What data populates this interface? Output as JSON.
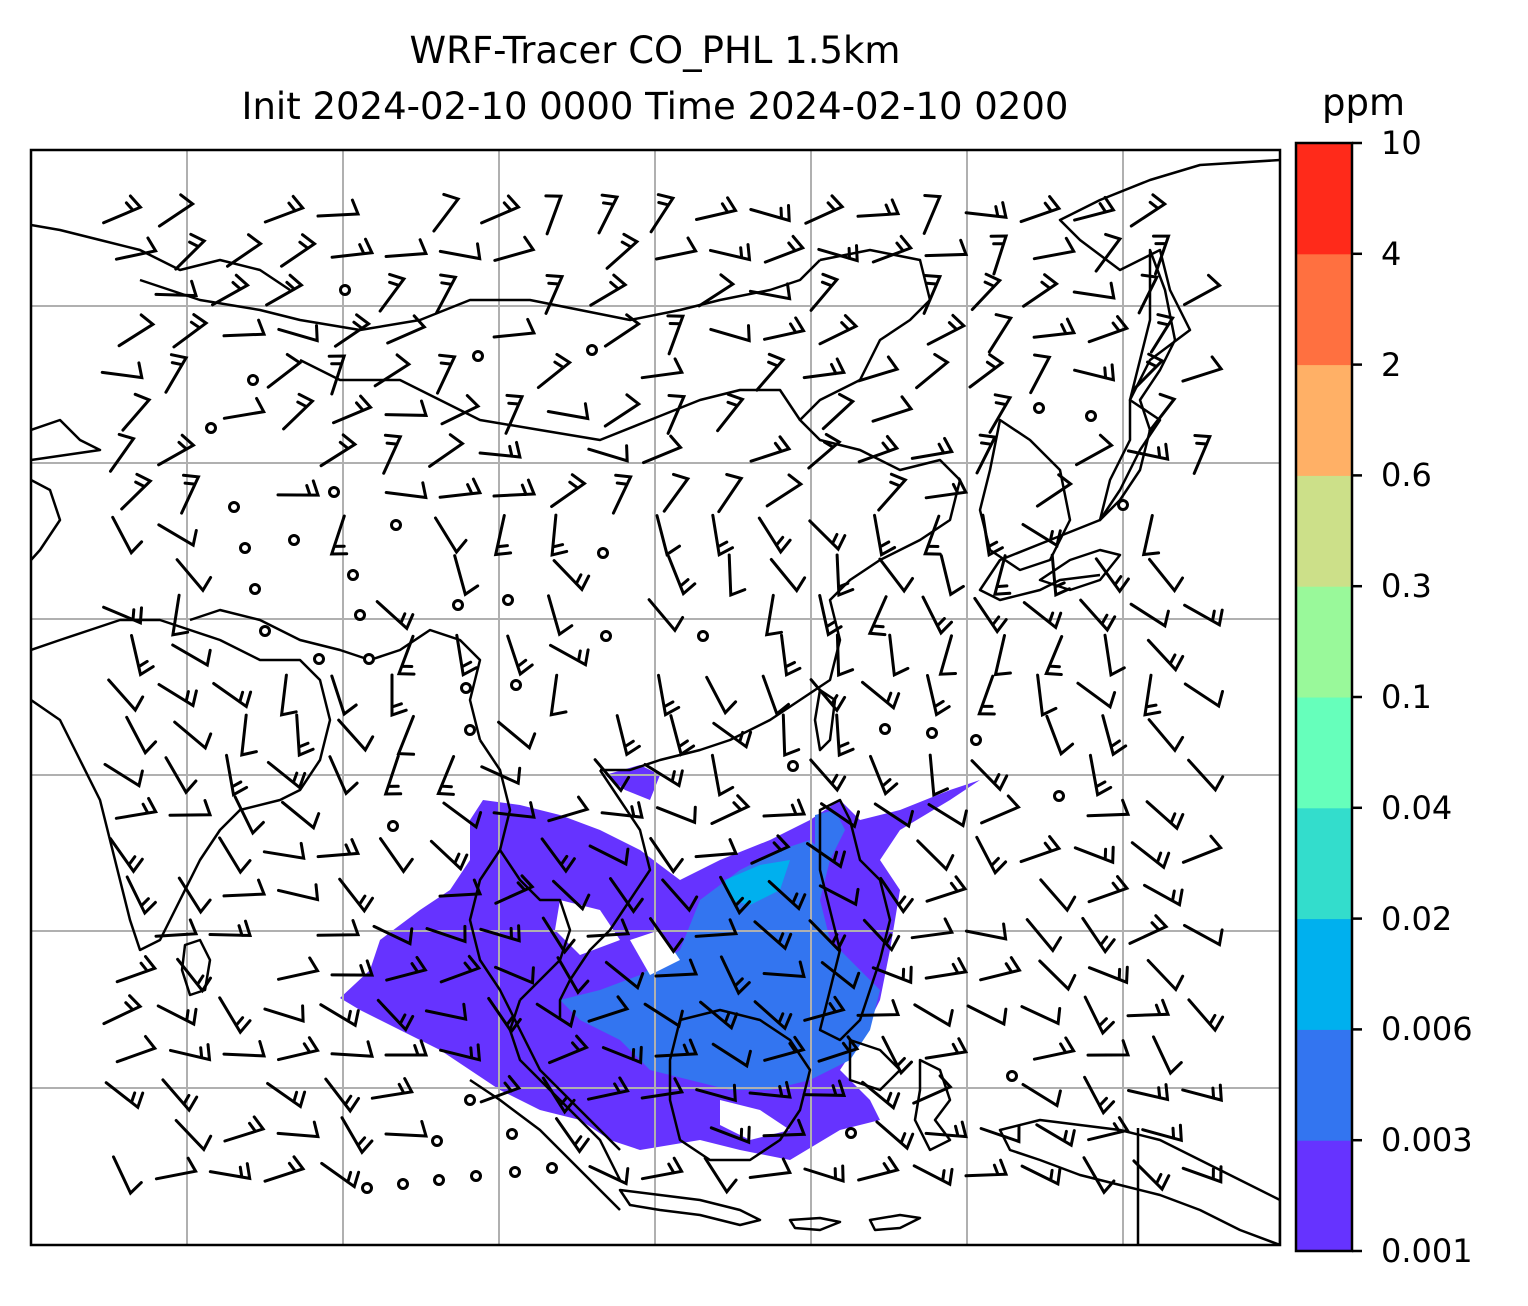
{
  "title": {
    "line1": "WRF-Tracer CO_PHL 1.5km",
    "line2": "Init 2024-02-10 0000 Time 2024-02-10 0200"
  },
  "colorbar": {
    "unit": "ppm",
    "ticks": [
      "10",
      "4",
      "2",
      "0.6",
      "0.3",
      "0.1",
      "0.04",
      "0.02",
      "0.006",
      "0.003",
      "0.001"
    ],
    "colors": [
      "#2b2bf0",
      "#6633ff",
      "#3375f0",
      "#00b0ee",
      "#33ddcc",
      "#66ffbb",
      "#99f99a",
      "#cce089",
      "#ffb066",
      "#ff7040",
      "#ff2a1a"
    ],
    "level_colors_bottom_to_top": [
      "#6633ff",
      "#3375f0",
      "#00b0ee",
      "#33ddcc",
      "#66ffbb",
      "#99f99a",
      "#cce089",
      "#ffb066",
      "#ff7040",
      "#ff2a1a"
    ]
  },
  "map": {
    "gridlines": true,
    "plume_colors": [
      "#6633ff",
      "#3375f0",
      "#00b0ee"
    ]
  }
}
